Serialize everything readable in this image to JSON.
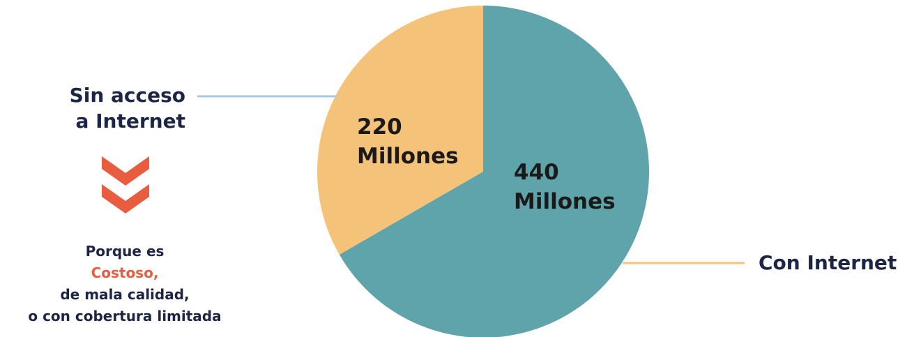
{
  "chart_data": {
    "type": "pie",
    "categories": [
      "Sin acceso a Internet",
      "Con Internet"
    ],
    "values": [
      220,
      440
    ],
    "value_labels": [
      [
        "220",
        "Millones"
      ],
      [
        "440",
        "Millones"
      ]
    ],
    "colors": [
      "#f5c27a",
      "#5fa3ab"
    ],
    "leader_colors": [
      "#a8c9e8",
      "#f5c27a"
    ]
  },
  "labels": {
    "sin_acceso_line1": "Sin acceso",
    "sin_acceso_line2": "a Internet",
    "con_internet": "Con Internet"
  },
  "reason": {
    "line1": "Porque es",
    "line2": "Costoso,",
    "line3": "de mala calidad,",
    "line4": "o con cobertura limitada"
  },
  "icons": {
    "arrow": "double-chevron-down-icon",
    "arrow_color": "#e85c3f"
  }
}
